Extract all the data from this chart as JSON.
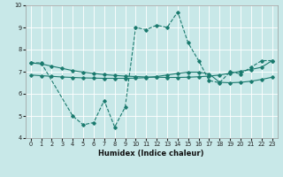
{
  "xlabel": "Humidex (Indice chaleur)",
  "bg_color": "#c8e8e8",
  "line_color": "#1a7a6e",
  "grid_color": "#ffffff",
  "xlim": [
    -0.5,
    23.5
  ],
  "ylim": [
    4,
    10
  ],
  "yticks": [
    4,
    5,
    6,
    7,
    8,
    9,
    10
  ],
  "xticks": [
    0,
    1,
    2,
    3,
    4,
    5,
    6,
    7,
    8,
    9,
    10,
    11,
    12,
    13,
    14,
    15,
    16,
    17,
    18,
    19,
    20,
    21,
    22,
    23
  ],
  "line1_x": [
    0,
    1,
    4,
    5,
    6,
    7,
    8,
    9,
    10,
    11,
    12,
    13,
    14,
    15,
    16,
    17,
    18,
    19,
    20,
    21,
    22,
    23
  ],
  "line1_y": [
    7.4,
    7.4,
    5.0,
    4.6,
    4.7,
    5.7,
    4.5,
    5.4,
    9.0,
    8.9,
    9.1,
    9.0,
    9.7,
    8.3,
    7.5,
    6.6,
    6.5,
    7.0,
    6.9,
    7.2,
    7.5,
    7.5
  ],
  "line2_x": [
    0,
    1,
    2,
    3,
    4,
    5,
    6,
    7,
    8,
    9,
    10,
    11,
    12,
    13,
    14,
    15,
    16,
    17,
    18,
    19,
    20,
    21,
    22,
    23
  ],
  "line2_y": [
    7.4,
    7.35,
    7.25,
    7.15,
    7.05,
    6.98,
    6.92,
    6.87,
    6.83,
    6.8,
    6.78,
    6.76,
    6.75,
    6.74,
    6.74,
    6.75,
    6.77,
    6.8,
    6.85,
    6.93,
    7.02,
    7.1,
    7.2,
    7.5
  ],
  "line3_x": [
    0,
    1,
    2,
    3,
    4,
    5,
    6,
    7,
    8,
    9,
    10,
    11,
    12,
    13,
    14,
    15,
    16,
    17,
    18,
    19,
    20,
    21,
    22,
    23
  ],
  "line3_y": [
    6.85,
    6.82,
    6.79,
    6.76,
    6.74,
    6.72,
    6.71,
    6.7,
    6.7,
    6.7,
    6.71,
    6.73,
    6.78,
    6.85,
    6.92,
    6.98,
    6.98,
    6.9,
    6.52,
    6.5,
    6.52,
    6.57,
    6.65,
    6.75
  ]
}
